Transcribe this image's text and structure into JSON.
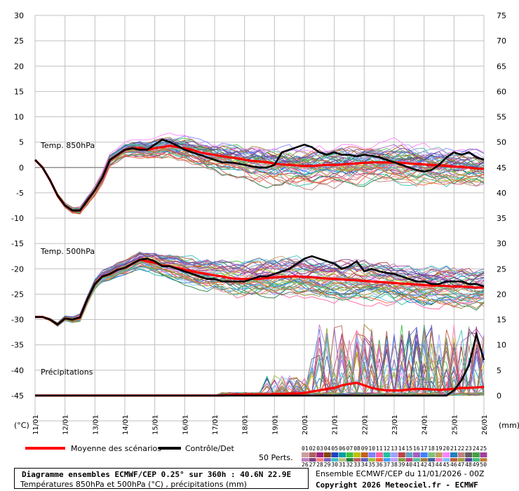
{
  "chart_data": {
    "type": "line",
    "left_axis": {
      "unit_label": "(°C)",
      "ticks": [
        30,
        25,
        20,
        15,
        10,
        5,
        0,
        -5,
        -10,
        -15,
        -20,
        -25,
        -30,
        -35,
        -40,
        -45
      ],
      "range": [
        -50,
        30
      ]
    },
    "right_axis": {
      "unit_label": "(mm)",
      "ticks": [
        75,
        70,
        65,
        60,
        55,
        50,
        45,
        40,
        35,
        30,
        25,
        20,
        15,
        10,
        5,
        0
      ]
    },
    "x_axis": {
      "tick_labels": [
        "11/01",
        "12/01",
        "13/01",
        "14/01",
        "15/01",
        "16/01",
        "17/01",
        "18/01",
        "19/01",
        "20/01",
        "21/01",
        "22/01",
        "23/01",
        "24/01",
        "25/01",
        "26/01"
      ],
      "range_days": [
        0,
        15
      ],
      "step_hours": 6
    },
    "annotations": [
      "Temp. 850hPa",
      "Temp. 500hPa",
      "Précipitations"
    ],
    "series": [
      {
        "name": "Moyenne des scénarios",
        "color": "#ff0000",
        "t850": [
          1.5,
          0,
          -2.5,
          -5.5,
          -7.5,
          -8.5,
          -8.5,
          -6.5,
          -4.5,
          -2,
          1.5,
          2.5,
          3.5,
          3.8,
          3.8,
          3.5,
          3.8,
          4,
          4.3,
          4,
          3.8,
          3.5,
          3,
          2.7,
          2.5,
          2.2,
          2,
          1.8,
          1.5,
          1.3,
          1.2,
          1,
          0.8,
          0.6,
          0.5,
          0.4,
          0.3,
          0.3,
          0.4,
          0.5,
          0.5,
          0.6,
          0.7,
          0.8,
          0.9,
          1,
          1,
          1,
          1,
          0.9,
          0.8,
          0.7,
          0.6,
          0.5,
          0.4,
          0.3,
          0.2,
          0.1,
          0,
          -0.2,
          -0.3
        ],
        "t500": [
          -29.5,
          -29.5,
          -30,
          -31,
          -29.8,
          -30,
          -29.6,
          -26,
          -23,
          -21.5,
          -21,
          -20.2,
          -19.8,
          -19,
          -18.2,
          -18.5,
          -18.8,
          -19.3,
          -19.5,
          -19.8,
          -20.2,
          -20.5,
          -20.8,
          -21,
          -21.3,
          -21.5,
          -21.8,
          -22,
          -22,
          -22,
          -22,
          -21.8,
          -21.7,
          -21.6,
          -21.5,
          -21.5,
          -21.6,
          -21.7,
          -21.8,
          -21.9,
          -22,
          -22.1,
          -22.2,
          -22.3,
          -22.4,
          -22.5,
          -22.6,
          -22.7,
          -22.8,
          -22.9,
          -23,
          -23.1,
          -23.2,
          -23.3,
          -23.3,
          -23.4,
          -23.5,
          -23.5,
          -23.6,
          -23.7,
          -23.7
        ],
        "precip": [
          0,
          0,
          0,
          0,
          0,
          0,
          0,
          0,
          0,
          0,
          0,
          0,
          0,
          0,
          0,
          0,
          0,
          0,
          0,
          0,
          0,
          0,
          0,
          0,
          0,
          0,
          0.1,
          0.2,
          0.2,
          0.2,
          0.2,
          0.2,
          0.3,
          0.3,
          0.4,
          0.4,
          0.5,
          0.8,
          1,
          1.3,
          1.5,
          2,
          2.3,
          2.5,
          2,
          1.5,
          1.2,
          1,
          1,
          1,
          1.2,
          1.3,
          1.3,
          1.2,
          1.1,
          1.2,
          1.3,
          1.5,
          1.5,
          1.6,
          1.7
        ]
      },
      {
        "name": "Contrôle/Det",
        "color": "#000000",
        "t850": [
          1.5,
          0,
          -2.5,
          -5.5,
          -7.5,
          -8.5,
          -8.5,
          -6.5,
          -4.5,
          -2,
          1.5,
          2.5,
          3.5,
          3.8,
          3.5,
          3.5,
          4.5,
          5.5,
          5,
          4.3,
          3.5,
          3,
          2.5,
          2,
          1.5,
          1,
          1,
          0.8,
          0.5,
          0.2,
          0,
          0,
          0.5,
          3,
          3.5,
          4,
          4.5,
          4,
          3,
          2.5,
          3,
          2.5,
          2.5,
          2.2,
          2.5,
          2.3,
          2,
          1.5,
          1,
          0.5,
          0,
          -0.5,
          -0.8,
          -0.5,
          0.5,
          2,
          3,
          2.5,
          3,
          2,
          1.5
        ],
        "t500": [
          -29.5,
          -29.5,
          -30,
          -31,
          -29.8,
          -30,
          -29.6,
          -26,
          -23,
          -21.5,
          -21,
          -20.2,
          -19.8,
          -19,
          -18.2,
          -18,
          -18.5,
          -19.5,
          -19.5,
          -20,
          -20.5,
          -21,
          -21.5,
          -22,
          -22,
          -22.5,
          -22.5,
          -22.5,
          -22.5,
          -22,
          -21.5,
          -21.5,
          -21,
          -20.5,
          -20,
          -19,
          -18,
          -17.5,
          -18,
          -18.5,
          -19,
          -20,
          -19.5,
          -18.5,
          -20.5,
          -20,
          -20.5,
          -20.8,
          -21,
          -21.5,
          -22,
          -22.5,
          -22.5,
          -23,
          -23,
          -22.5,
          -22.5,
          -22.5,
          -23,
          -23,
          -23.5
        ],
        "precip": [
          0,
          0,
          0,
          0,
          0,
          0,
          0,
          0,
          0,
          0,
          0,
          0,
          0,
          0,
          0,
          0,
          0,
          0,
          0,
          0,
          0,
          0,
          0,
          0,
          0,
          0,
          0,
          0,
          0,
          0,
          0,
          0,
          0,
          0,
          0,
          0,
          0,
          0,
          0,
          0,
          0,
          0,
          0,
          0,
          0,
          0,
          0,
          0,
          0,
          0,
          0,
          0,
          0,
          0,
          0,
          0,
          1,
          3,
          6,
          12,
          7
        ]
      }
    ],
    "perturbations": {
      "label": "50 Perts.",
      "count": 50,
      "numbers_row1": [
        "01",
        "02",
        "03",
        "04",
        "05",
        "06",
        "07",
        "08",
        "09",
        "10",
        "11",
        "12",
        "13",
        "14",
        "15",
        "16",
        "17",
        "18",
        "19",
        "20",
        "21",
        "22",
        "23",
        "24",
        "25"
      ],
      "numbers_row2": [
        "26",
        "27",
        "28",
        "29",
        "30",
        "31",
        "32",
        "33",
        "34",
        "35",
        "36",
        "37",
        "38",
        "39",
        "40",
        "41",
        "42",
        "43",
        "44",
        "45",
        "46",
        "47",
        "48",
        "49",
        "50"
      ],
      "colors_row1": [
        "#c8a0a0",
        "#b06060",
        "#a02080",
        "#884400",
        "#2040c0",
        "#00a0a0",
        "#40c040",
        "#c0c000",
        "#c06020",
        "#8080ff",
        "#ff60a0",
        "#20c0a0",
        "#a0a0ff",
        "#c04040",
        "#60a0c0",
        "#a060c0",
        "#4080ff",
        "#80c080",
        "#c0a060",
        "#ff80ff",
        "#2080c0",
        "#c08080",
        "#606060",
        "#40a040",
        "#a040a0"
      ],
      "colors_row2": [
        "#c080c0",
        "#804080",
        "#ff8080",
        "#8060c0",
        "#40c0c0",
        "#c0c080",
        "#208040",
        "#c06060",
        "#6060c0",
        "#a0c040",
        "#ff6040",
        "#40a0ff",
        "#c0a0ff",
        "#80a040",
        "#c04080",
        "#60c0a0",
        "#a08040",
        "#4060a0",
        "#ff80c0",
        "#80c0ff",
        "#c06040",
        "#a0a040",
        "#6040a0",
        "#40c080",
        "#c08040"
      ]
    }
  },
  "legend": {
    "mean_label": "Moyenne des scénarios",
    "control_label": "Contrôle/Det"
  },
  "info": {
    "title": "Diagramme ensembles ECMWF/CEP 0.25° sur 360h : 40.6N 22.9E",
    "subtitle": "Températures 850hPa et 500hPa (°C) , précipitations (mm)",
    "ensemble": "Ensemble ECMWF/CEP du 11/01/2026 - 00Z",
    "copyright": "Copyright 2026 Meteociel.fr - ECMWF"
  }
}
